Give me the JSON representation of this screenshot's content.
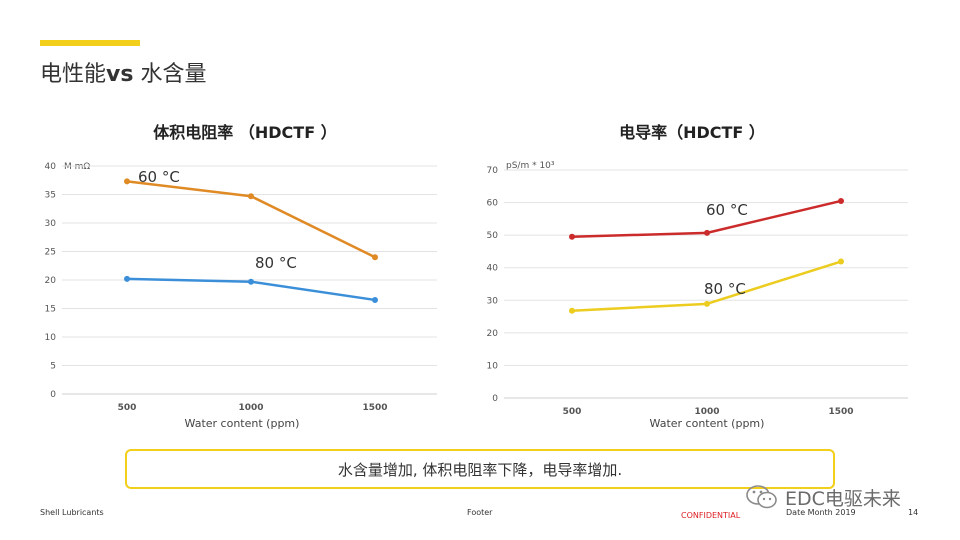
{
  "slide": {
    "title_prefix": "电性能",
    "title_vs": "vs",
    "title_suffix": " 水含量",
    "accent_color": "#f2cf1b"
  },
  "chart_data": [
    {
      "type": "line",
      "title": "体积电阻率 （HDCTF ）",
      "unit_label": "M mΩ",
      "xlabel": "Water content (ppm)",
      "categories": [
        "500",
        "1000",
        "1500"
      ],
      "ylim": [
        0,
        40
      ],
      "yticks": [
        "0",
        "5",
        "10",
        "15",
        "20",
        "25",
        "30",
        "35",
        "40"
      ],
      "grid": true,
      "series": [
        {
          "label": "60 °C",
          "color": "#df8a24",
          "values": [
            37.3,
            34.7,
            24.0
          ]
        },
        {
          "label": "80 °C",
          "color": "#3b8fd9",
          "values": [
            20.2,
            19.7,
            16.5
          ]
        }
      ]
    },
    {
      "type": "line",
      "title": "电导率（HDCTF ）",
      "unit_label": "pS/m * 10³",
      "xlabel": "Water content (ppm)",
      "categories": [
        "500",
        "1000",
        "1500"
      ],
      "ylim": [
        0,
        70
      ],
      "yticks": [
        "0",
        "10",
        "20",
        "30",
        "40",
        "50",
        "60",
        "70"
      ],
      "grid": true,
      "series": [
        {
          "label": "60 °C",
          "color": "#cc2b2b",
          "values": [
            49.5,
            50.7,
            60.5
          ]
        },
        {
          "label": "80 °C",
          "color": "#eccc1f",
          "values": [
            26.8,
            28.9,
            41.9
          ]
        }
      ]
    }
  ],
  "summary": "水含量增加, 体积电阻率下降，电导率增加.",
  "footer": {
    "left": "Shell Lubricants",
    "center": "Footer",
    "confidential": "CONFIDENTIAL",
    "date": "Date Month 2019",
    "page": "14"
  },
  "watermark": {
    "text": "EDC电驱未来",
    "icon": "wechat-icon"
  }
}
